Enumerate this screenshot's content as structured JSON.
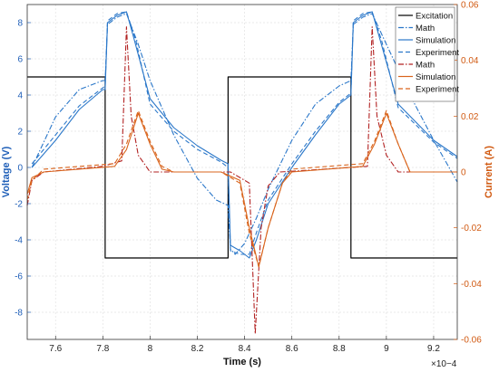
{
  "chart_data": {
    "type": "line",
    "x_label": "Time (s)",
    "x_multiplier": "×10−4",
    "y_left_label": "Voltage (V)",
    "y_right_label": "Current (A)",
    "xlim": [
      7.48,
      9.3
    ],
    "ylim_left": [
      -9.5,
      9.0
    ],
    "ylim_right": [
      -0.06,
      0.06
    ],
    "x_ticks": [
      7.6,
      7.8,
      8.0,
      8.2,
      8.4,
      8.6,
      8.8,
      9.0,
      9.2
    ],
    "x_tick_labels": [
      "7.6",
      "7.8",
      "8",
      "8.2",
      "8.4",
      "8.6",
      "8.8",
      "9",
      "9.2"
    ],
    "y_left_ticks": [
      -8,
      -6,
      -4,
      -2,
      0,
      2,
      4,
      6,
      8
    ],
    "y_left_tick_labels": [
      "-8",
      "-6",
      "-4",
      "-2",
      "0",
      "2",
      "4",
      "6",
      "8"
    ],
    "y_right_ticks": [
      -0.06,
      -0.04,
      -0.02,
      0,
      0.02,
      0.04,
      0.06
    ],
    "y_right_tick_labels": [
      "-0.06",
      "-0.04",
      "-0.02",
      "0",
      "0.02",
      "0.04",
      "0.06"
    ],
    "grid": true,
    "legend_position": "top-right",
    "colors": {
      "excitation": "#000000",
      "voltage": "#2a77c9",
      "current": "#d9641c",
      "current_math": "#b22222"
    },
    "series": [
      {
        "name": "Excitation",
        "axis": "left",
        "color": "#000000",
        "style": "solid",
        "points": [
          [
            7.48,
            5
          ],
          [
            7.81,
            5
          ],
          [
            7.81,
            -5
          ],
          [
            8.33,
            -5
          ],
          [
            8.33,
            5
          ],
          [
            8.85,
            5
          ],
          [
            8.85,
            -5
          ],
          [
            9.3,
            -5
          ]
        ]
      },
      {
        "name": "Math",
        "axis": "left",
        "color": "#2a77c9",
        "style": "dashdot",
        "points": [
          [
            7.5,
            0.0
          ],
          [
            7.6,
            2.8
          ],
          [
            7.7,
            4.3
          ],
          [
            7.8,
            4.8
          ],
          [
            7.81,
            4.8
          ],
          [
            7.82,
            7.9
          ],
          [
            7.86,
            8.3
          ],
          [
            7.9,
            8.5
          ],
          [
            7.95,
            6.8
          ],
          [
            8.0,
            4.8
          ],
          [
            8.1,
            1.8
          ],
          [
            8.2,
            -0.6
          ],
          [
            8.28,
            -1.8
          ],
          [
            8.33,
            -2.1
          ],
          [
            8.34,
            -4.5
          ],
          [
            8.36,
            -4.8
          ],
          [
            8.4,
            -4.2
          ],
          [
            8.45,
            -2.8
          ],
          [
            8.5,
            -1.2
          ],
          [
            8.6,
            1.5
          ],
          [
            8.7,
            3.5
          ],
          [
            8.8,
            4.5
          ],
          [
            8.85,
            4.8
          ],
          [
            8.86,
            7.9
          ],
          [
            8.9,
            8.3
          ],
          [
            8.94,
            8.5
          ],
          [
            9.0,
            6.8
          ],
          [
            9.1,
            4.0
          ],
          [
            9.2,
            1.5
          ],
          [
            9.3,
            -0.8
          ]
        ]
      },
      {
        "name": "Simulation",
        "axis": "left",
        "color": "#2a77c9",
        "style": "solid",
        "points": [
          [
            7.5,
            0.0
          ],
          [
            7.6,
            1.5
          ],
          [
            7.7,
            3.2
          ],
          [
            7.8,
            4.3
          ],
          [
            7.81,
            4.3
          ],
          [
            7.82,
            8.0
          ],
          [
            7.86,
            8.4
          ],
          [
            7.9,
            8.6
          ],
          [
            7.93,
            7.2
          ],
          [
            8.0,
            3.8
          ],
          [
            8.1,
            2.2
          ],
          [
            8.2,
            1.2
          ],
          [
            8.3,
            0.4
          ],
          [
            8.33,
            0.2
          ],
          [
            8.34,
            -4.3
          ],
          [
            8.38,
            -4.6
          ],
          [
            8.42,
            -5.0
          ],
          [
            8.45,
            -4.0
          ],
          [
            8.5,
            -2.0
          ],
          [
            8.6,
            0.0
          ],
          [
            8.7,
            1.8
          ],
          [
            8.8,
            3.5
          ],
          [
            8.85,
            4.0
          ],
          [
            8.86,
            8.0
          ],
          [
            8.9,
            8.4
          ],
          [
            8.94,
            8.6
          ],
          [
            8.97,
            7.2
          ],
          [
            9.05,
            3.5
          ],
          [
            9.2,
            1.5
          ],
          [
            9.3,
            0.6
          ]
        ]
      },
      {
        "name": "Experiment",
        "axis": "left",
        "color": "#2a77c9",
        "style": "dashed",
        "points": [
          [
            7.5,
            0.2
          ],
          [
            7.6,
            1.8
          ],
          [
            7.7,
            3.4
          ],
          [
            7.8,
            4.4
          ],
          [
            7.81,
            4.5
          ],
          [
            7.82,
            8.1
          ],
          [
            7.86,
            8.5
          ],
          [
            7.9,
            8.6
          ],
          [
            7.94,
            7.0
          ],
          [
            8.0,
            3.5
          ],
          [
            8.1,
            2.0
          ],
          [
            8.2,
            1.0
          ],
          [
            8.3,
            0.3
          ],
          [
            8.33,
            0.0
          ],
          [
            8.34,
            -4.6
          ],
          [
            8.38,
            -4.8
          ],
          [
            8.42,
            -4.8
          ],
          [
            8.45,
            -3.6
          ],
          [
            8.5,
            -1.8
          ],
          [
            8.6,
            0.2
          ],
          [
            8.7,
            2.0
          ],
          [
            8.8,
            3.6
          ],
          [
            8.85,
            4.1
          ],
          [
            8.86,
            8.1
          ],
          [
            8.9,
            8.5
          ],
          [
            8.94,
            8.6
          ],
          [
            8.98,
            7.0
          ],
          [
            9.05,
            3.3
          ],
          [
            9.2,
            1.4
          ],
          [
            9.3,
            0.5
          ]
        ]
      },
      {
        "name": "Math",
        "axis": "right",
        "color": "#b22222",
        "style": "dashdot",
        "points": [
          [
            7.48,
            -0.012
          ],
          [
            7.5,
            -0.003
          ],
          [
            7.55,
            0.0
          ],
          [
            7.8,
            0.002
          ],
          [
            7.88,
            0.004
          ],
          [
            7.9,
            0.052
          ],
          [
            7.92,
            0.02
          ],
          [
            7.95,
            0.006
          ],
          [
            8.0,
            0.0
          ],
          [
            8.34,
            0.0
          ],
          [
            8.42,
            -0.004
          ],
          [
            8.445,
            -0.058
          ],
          [
            8.47,
            -0.02
          ],
          [
            8.5,
            -0.005
          ],
          [
            8.55,
            0.0
          ],
          [
            8.92,
            0.002
          ],
          [
            8.94,
            0.052
          ],
          [
            8.96,
            0.02
          ],
          [
            9.0,
            0.006
          ],
          [
            9.05,
            0.0
          ],
          [
            9.3,
            0.0
          ]
        ]
      },
      {
        "name": "Simulation",
        "axis": "right",
        "color": "#d9641c",
        "style": "solid",
        "points": [
          [
            7.48,
            -0.008
          ],
          [
            7.5,
            -0.002
          ],
          [
            7.55,
            0.0
          ],
          [
            7.85,
            0.002
          ],
          [
            7.9,
            0.008
          ],
          [
            7.95,
            0.021
          ],
          [
            8.0,
            0.01
          ],
          [
            8.05,
            0.001
          ],
          [
            8.1,
            0.0
          ],
          [
            8.3,
            0.0
          ],
          [
            8.38,
            -0.003
          ],
          [
            8.42,
            -0.02
          ],
          [
            8.46,
            -0.034
          ],
          [
            8.5,
            -0.02
          ],
          [
            8.56,
            -0.004
          ],
          [
            8.6,
            0.0
          ],
          [
            8.9,
            0.002
          ],
          [
            8.95,
            0.01
          ],
          [
            9.0,
            0.021
          ],
          [
            9.05,
            0.01
          ],
          [
            9.1,
            0.0
          ],
          [
            9.3,
            0.0
          ]
        ]
      },
      {
        "name": "Experiment",
        "axis": "right",
        "color": "#d9641c",
        "style": "dashed",
        "points": [
          [
            7.48,
            -0.01
          ],
          [
            7.5,
            -0.003
          ],
          [
            7.55,
            0.001
          ],
          [
            7.85,
            0.003
          ],
          [
            7.9,
            0.01
          ],
          [
            7.95,
            0.022
          ],
          [
            8.0,
            0.011
          ],
          [
            8.05,
            0.002
          ],
          [
            8.1,
            0.0
          ],
          [
            8.3,
            0.0
          ],
          [
            8.38,
            -0.004
          ],
          [
            8.42,
            -0.022
          ],
          [
            8.46,
            -0.034
          ],
          [
            8.5,
            -0.02
          ],
          [
            8.56,
            -0.004
          ],
          [
            8.6,
            0.001
          ],
          [
            8.9,
            0.003
          ],
          [
            8.95,
            0.011
          ],
          [
            9.0,
            0.022
          ],
          [
            9.05,
            0.01
          ],
          [
            9.1,
            0.0
          ],
          [
            9.3,
            0.0
          ]
        ]
      }
    ]
  }
}
